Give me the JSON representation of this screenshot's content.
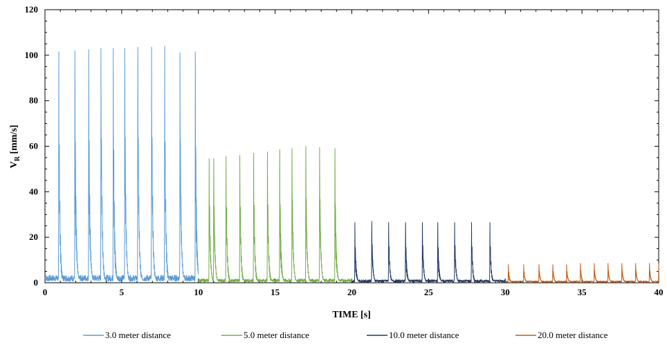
{
  "chart_data": {
    "type": "line",
    "title": "",
    "xlabel": "TIME [s]",
    "ylabel": "V",
    "ylabel_sub": "R",
    "ylabel_unit": " [mm/s]",
    "xlim": [
      0,
      40
    ],
    "ylim": [
      0,
      120
    ],
    "xticks": [
      0,
      5,
      10,
      15,
      20,
      25,
      30,
      35,
      40
    ],
    "yticks": [
      0,
      20,
      40,
      60,
      80,
      100,
      120
    ],
    "grid": false,
    "legend_position": "bottom",
    "series": [
      {
        "name": "3.0 meter distance",
        "color": "#5b9bd5",
        "x_range": [
          0,
          10
        ],
        "baseline": 2,
        "peak_times": [
          0.9,
          1.95,
          2.85,
          3.65,
          4.45,
          5.2,
          6.05,
          6.95,
          7.8,
          8.8,
          9.8
        ],
        "peak_values": [
          101.5,
          102,
          102.5,
          103,
          103,
          103,
          103.5,
          103.5,
          104,
          101,
          101.5
        ]
      },
      {
        "name": "5.0 meter distance",
        "color": "#70ad47",
        "x_range": [
          10,
          20
        ],
        "baseline": 1,
        "peak_times": [
          10.7,
          11,
          11.8,
          12.7,
          13.6,
          14.5,
          15.3,
          16.1,
          17.0,
          17.9,
          18.9
        ],
        "peak_values": [
          54.5,
          54.5,
          55.5,
          56,
          57,
          57.5,
          58.5,
          59,
          60,
          59.5,
          59
        ]
      },
      {
        "name": "10.0 meter distance",
        "color": "#203864",
        "x_range": [
          20,
          30
        ],
        "baseline": 0.8,
        "peak_times": [
          20.2,
          21.3,
          22.4,
          23.5,
          24.6,
          25.6,
          26.7,
          27.8,
          29.0
        ],
        "peak_values": [
          26.5,
          27,
          26.5,
          26.5,
          26.5,
          26.5,
          26.5,
          26.5,
          26.5
        ]
      },
      {
        "name": "20.0 meter distance",
        "color": "#c55a11",
        "x_range": [
          30,
          40
        ],
        "baseline": 0.5,
        "peak_times": [
          30.2,
          31.2,
          32.2,
          33.1,
          34.0,
          34.9,
          35.8,
          36.7,
          37.6,
          38.5,
          39.4,
          40.0
        ],
        "peak_values": [
          8,
          8,
          8,
          8,
          8,
          8.5,
          8.5,
          8.5,
          8.5,
          8.5,
          8.5,
          8.5
        ]
      }
    ]
  }
}
